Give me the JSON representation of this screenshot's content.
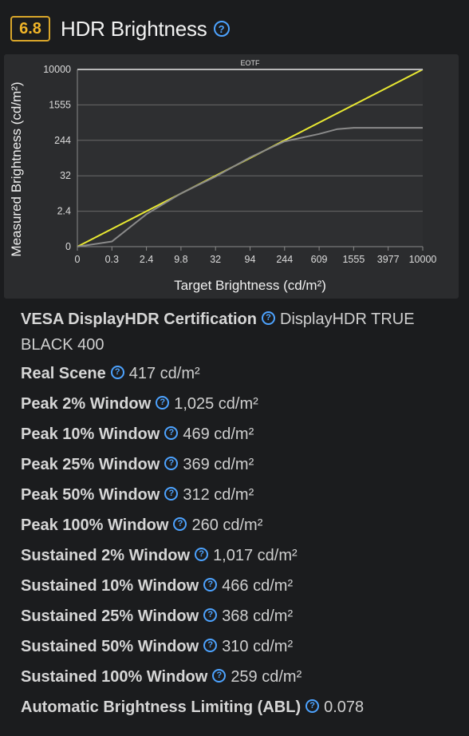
{
  "header": {
    "score": "6.8",
    "title": "HDR Brightness",
    "help_glyph": "?"
  },
  "chart_data": {
    "type": "line",
    "title": "EOTF",
    "xlabel": "Target Brightness (cd/m²)",
    "ylabel": "Measured Brightness (cd/m²)",
    "x_ticks": [
      "0",
      "0.3",
      "2.4",
      "9.8",
      "32",
      "94",
      "244",
      "609",
      "1555",
      "3977",
      "10000"
    ],
    "y_ticks": [
      "0",
      "2.4",
      "32",
      "244",
      "1555",
      "10000"
    ],
    "series": [
      {
        "color": "#e8e832",
        "points": [
          [
            0,
            0
          ],
          [
            10000,
            10000
          ]
        ]
      },
      {
        "color": "#8a8a8a",
        "points": [
          [
            0,
            0
          ],
          [
            0.3,
            0.35
          ],
          [
            2.4,
            2.2
          ],
          [
            9.8,
            8.8
          ],
          [
            32,
            30
          ],
          [
            94,
            92
          ],
          [
            244,
            230
          ],
          [
            609,
            340
          ],
          [
            1000,
            440
          ],
          [
            1555,
            470
          ],
          [
            3977,
            470
          ],
          [
            10000,
            470
          ]
        ]
      },
      {
        "color": "#b8b8b8",
        "points": [
          [
            0,
            10000
          ],
          [
            10000,
            10000
          ]
        ]
      }
    ],
    "grid": true
  },
  "metrics": [
    {
      "label": "VESA DisplayHDR Certification",
      "value": "DisplayHDR TRUE BLACK 400"
    },
    {
      "label": "Real Scene",
      "value": "417 cd/m²"
    },
    {
      "label": "Peak 2% Window",
      "value": "1,025 cd/m²"
    },
    {
      "label": "Peak 10% Window",
      "value": "469 cd/m²"
    },
    {
      "label": "Peak 25% Window",
      "value": "369 cd/m²"
    },
    {
      "label": "Peak 50% Window",
      "value": "312 cd/m²"
    },
    {
      "label": "Peak 100% Window",
      "value": "260 cd/m²"
    },
    {
      "label": "Sustained 2% Window",
      "value": "1,017 cd/m²"
    },
    {
      "label": "Sustained 10% Window",
      "value": "466 cd/m²"
    },
    {
      "label": "Sustained 25% Window",
      "value": "368 cd/m²"
    },
    {
      "label": "Sustained 50% Window",
      "value": "310 cd/m²"
    },
    {
      "label": "Sustained 100% Window",
      "value": "259 cd/m²"
    },
    {
      "label": "Automatic Brightness Limiting (ABL)",
      "value": "0.078"
    }
  ]
}
